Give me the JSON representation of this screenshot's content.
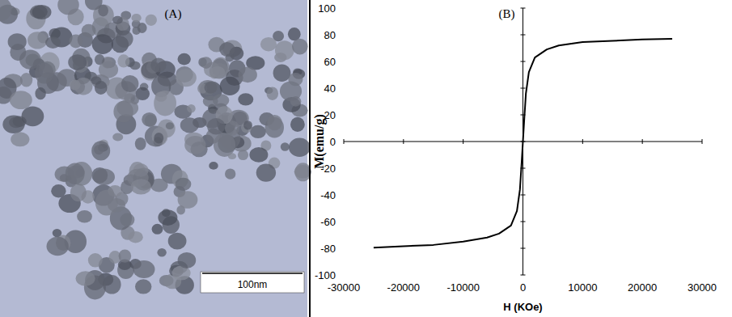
{
  "image_panel": {
    "label": "(A)",
    "scale_bar": "100nm"
  },
  "chart_data": {
    "type": "line",
    "title": "(B)",
    "x_label": "H (KOe)",
    "y_label": "M(emu/g)",
    "x": [
      -25000,
      -20000,
      -15000,
      -10000,
      -6000,
      -4000,
      -2000,
      -1000,
      -500,
      -200,
      0,
      200,
      500,
      1000,
      2000,
      4000,
      6000,
      10000,
      15000,
      20000,
      25000
    ],
    "values": [
      -79.5,
      -78.5,
      -77.5,
      -75,
      -72,
      -69,
      -63,
      -52,
      -36,
      -15,
      0,
      15,
      36,
      52,
      63,
      69,
      72,
      74.5,
      75.5,
      76.5,
      77
    ],
    "color": "#000000",
    "xlim": [
      -30000,
      30000
    ],
    "xticks": [
      -30000,
      -20000,
      -10000,
      0,
      10000,
      20000,
      30000
    ],
    "ylim": [
      -100,
      100
    ],
    "yticks": [
      -100,
      -80,
      -60,
      -40,
      -20,
      0,
      20,
      40,
      60,
      80,
      100
    ],
    "grid": false
  }
}
